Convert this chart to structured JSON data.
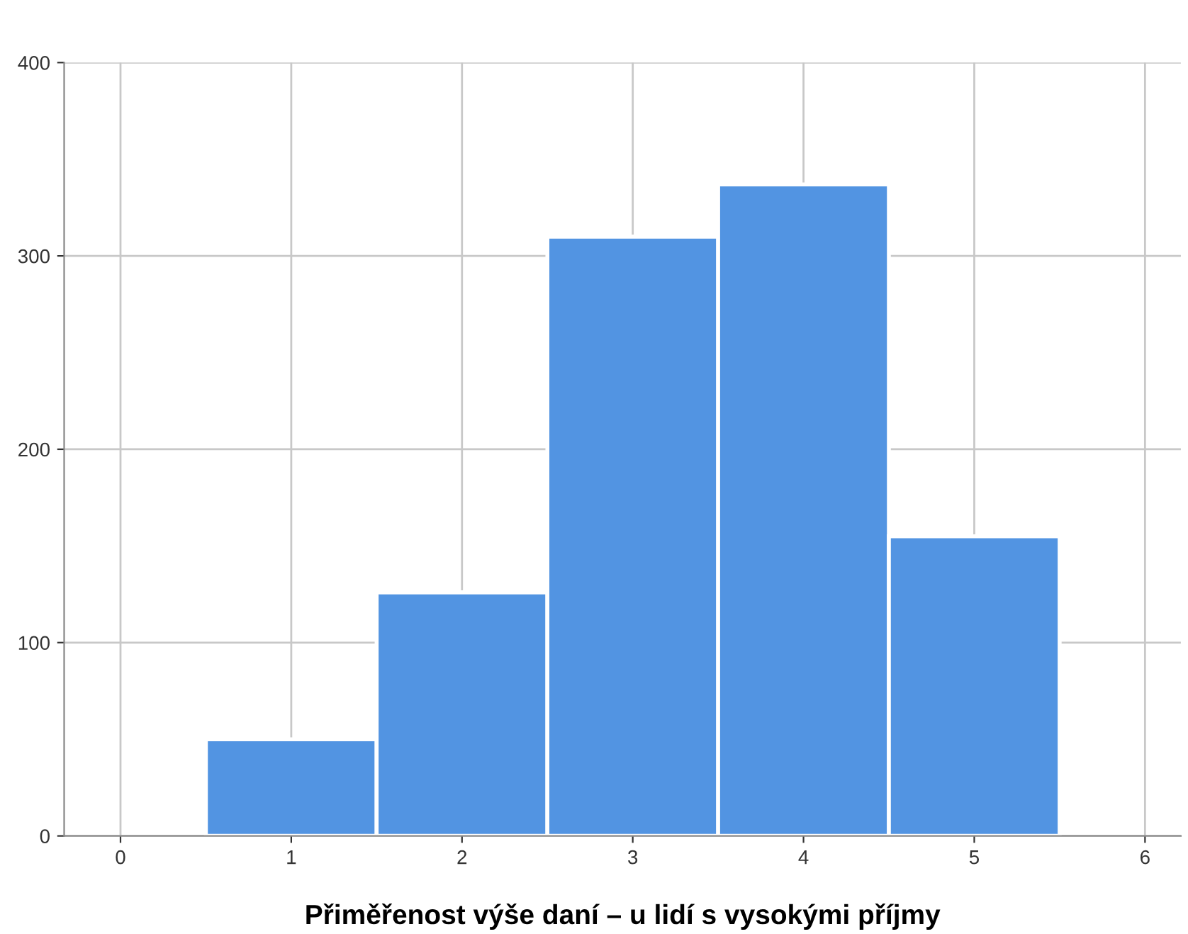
{
  "chart_data": {
    "type": "histogram",
    "xlabel": "Přiměřenost výše daní – u lidí s vysokými příjmy",
    "bins": [
      0.5,
      1.5,
      2.5,
      3.5,
      4.5,
      5.5
    ],
    "values": [
      50,
      126,
      310,
      337,
      155
    ],
    "color": "#5294e2",
    "xlim": [
      -0.33,
      6.21
    ],
    "xticks": [
      0,
      1,
      2,
      3,
      4,
      5,
      6
    ],
    "ylim": [
      0,
      400
    ],
    "yticks": [
      0,
      100,
      200,
      300,
      400
    ],
    "grid": true
  }
}
